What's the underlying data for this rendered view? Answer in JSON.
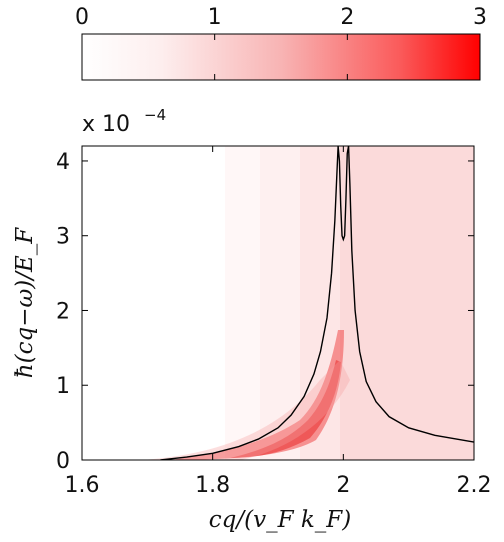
{
  "chart_data": {
    "type": "heatmap",
    "title": "",
    "xlabel": "cq/(v_F k_F)",
    "ylabel": "ħ(cq−ω)/E_F",
    "x_ticks": [
      "1.6",
      "1.8",
      "2",
      "2.2"
    ],
    "x_tick_values": [
      1.6,
      1.8,
      2.0,
      2.2
    ],
    "y_ticks": [
      "0",
      "1",
      "2",
      "3",
      "4"
    ],
    "y_tick_values": [
      0,
      1,
      2,
      3,
      4
    ],
    "y_multiplier": {
      "base": "x 10",
      "exponent": "−4"
    },
    "xlim": [
      1.6,
      2.2
    ],
    "ylim": [
      0,
      4.2
    ],
    "colorbar": {
      "ticks": [
        "0",
        "1",
        "2",
        "3"
      ],
      "tick_values": [
        0,
        1,
        2,
        3
      ],
      "range": [
        0,
        3
      ],
      "color_low": "#ffffff",
      "color_high": "#ff0000",
      "placement": "top"
    },
    "curve": {
      "color": "#000000",
      "x": [
        1.72,
        1.76,
        1.8,
        1.84,
        1.87,
        1.9,
        1.92,
        1.94,
        1.955,
        1.965,
        1.975,
        1.982,
        1.987,
        1.99,
        1.992,
        1.994,
        1.996,
        1.998,
        2.0,
        2.002,
        2.004,
        2.006,
        2.008,
        2.01,
        2.013,
        2.018,
        2.025,
        2.035,
        2.05,
        2.07,
        2.1,
        2.14,
        2.2
      ],
      "y": [
        0.0,
        0.04,
        0.09,
        0.18,
        0.28,
        0.43,
        0.6,
        0.85,
        1.15,
        1.45,
        1.9,
        2.5,
        3.2,
        3.8,
        4.2,
        4.0,
        3.4,
        3.0,
        2.95,
        3.0,
        3.5,
        4.1,
        4.2,
        3.7,
        2.8,
        2.0,
        1.45,
        1.05,
        0.78,
        0.58,
        0.43,
        0.33,
        0.24
      ]
    }
  }
}
